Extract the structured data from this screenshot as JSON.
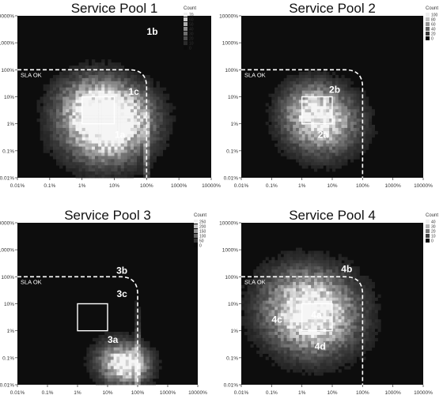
{
  "chart_data": [
    {
      "type": "heatmap",
      "title": "Service Pool 1",
      "x_ticks": [
        "0.01%",
        "0.1%",
        "1%",
        "10%",
        "100%",
        "1000%",
        "10000%"
      ],
      "y_ticks": [
        "0.01%",
        "0.1%",
        "1%",
        "10%",
        "100%",
        "1000%",
        "10000%"
      ],
      "legend_title": "Count",
      "legend_ticks": [
        "70",
        "60",
        "50",
        "40",
        "30",
        "20",
        "10",
        "0"
      ],
      "sla_label": "SLA OK",
      "region_labels": [
        {
          "text": "1a",
          "x": 15,
          "y": 0.3
        },
        {
          "text": "1b",
          "x": 150,
          "y": 2000
        },
        {
          "text": "1c",
          "x": 40,
          "y": 12
        }
      ],
      "box": {
        "x0": 1,
        "x1": 10,
        "y0": 1,
        "y1": 10
      },
      "hotspots": [
        {
          "x": 5,
          "y": 0.5,
          "intensity": 0.95,
          "spread": 0.8
        },
        {
          "x": 2,
          "y": 5,
          "intensity": 0.75,
          "spread": 0.7
        },
        {
          "x": 15,
          "y": 2,
          "intensity": 0.7,
          "spread": 0.7
        }
      ],
      "stripe": true
    },
    {
      "type": "heatmap",
      "title": "Service Pool 2",
      "x_ticks": [
        "0.01%",
        "0.1%",
        "1%",
        "10%",
        "100%",
        "1000%",
        "10000%"
      ],
      "y_ticks": [
        "0.01%",
        "0.1%",
        "1%",
        "10%",
        "100%",
        "1000%",
        "10000%"
      ],
      "legend_title": "Count",
      "legend_ticks": [
        "100",
        "80",
        "60",
        "40",
        "20",
        "0"
      ],
      "sla_label": "SLA OK",
      "region_labels": [
        {
          "text": "2a",
          "x": 5,
          "y": 0.3
        },
        {
          "text": "2b",
          "x": 12,
          "y": 14
        }
      ],
      "box": {
        "x0": 1,
        "x1": 10,
        "y0": 1,
        "y1": 10
      },
      "hotspots": [
        {
          "x": 5,
          "y": 1,
          "intensity": 0.85,
          "spread": 0.75
        },
        {
          "x": 2,
          "y": 4,
          "intensity": 0.55,
          "spread": 0.6
        }
      ],
      "stripe": false
    },
    {
      "type": "heatmap",
      "title": "Service Pool 3",
      "x_ticks": [
        "0.01%",
        "0.1%",
        "1%",
        "10%",
        "100%",
        "1000%",
        "10000%"
      ],
      "y_ticks": [
        "0.01%",
        "0.1%",
        "1%",
        "10%",
        "100%",
        "1000%",
        "10000%"
      ],
      "legend_title": "Count",
      "legend_ticks": [
        "250",
        "200",
        "150",
        "100",
        "50",
        "0"
      ],
      "sla_label": "SLA OK",
      "region_labels": [
        {
          "text": "3a",
          "x": 15,
          "y": 0.35
        },
        {
          "text": "3b",
          "x": 30,
          "y": 130
        },
        {
          "text": "3c",
          "x": 30,
          "y": 18
        }
      ],
      "box": {
        "x0": 1,
        "x1": 10,
        "y0": 1,
        "y1": 10
      },
      "hotspots": [
        {
          "x": 50,
          "y": 0.05,
          "intensity": 0.9,
          "spread": 0.45
        },
        {
          "x": 20,
          "y": 0.08,
          "intensity": 0.5,
          "spread": 0.5
        }
      ],
      "stripe": true
    },
    {
      "type": "heatmap",
      "title": "Service Pool 4",
      "x_ticks": [
        "0.01%",
        "0.1%",
        "1%",
        "10%",
        "100%",
        "1000%",
        "10000%"
      ],
      "y_ticks": [
        "0.01%",
        "0.1%",
        "1%",
        "10%",
        "100%",
        "1000%",
        "10000%"
      ],
      "legend_title": "Count",
      "legend_ticks": [
        "40",
        "30",
        "20",
        "10",
        "0"
      ],
      "sla_label": "SLA OK",
      "region_labels": [
        {
          "text": "4a",
          "x": 3,
          "y": 3
        },
        {
          "text": "4b",
          "x": 30,
          "y": 150
        },
        {
          "text": "4c",
          "x": 0.15,
          "y": 2
        },
        {
          "text": "4d",
          "x": 4,
          "y": 0.2
        }
      ],
      "box": {
        "x0": 1,
        "x1": 10,
        "y0": 1,
        "y1": 10
      },
      "hotspots": [
        {
          "x": 3,
          "y": 3,
          "intensity": 0.85,
          "spread": 0.9
        },
        {
          "x": 1,
          "y": 10,
          "intensity": 0.6,
          "spread": 0.9
        }
      ],
      "stripe": false
    }
  ],
  "colors": {
    "background": "#ffffff",
    "plot_bg": "#0d0d0d",
    "text": "#111111",
    "annotation": "#ffffff"
  }
}
